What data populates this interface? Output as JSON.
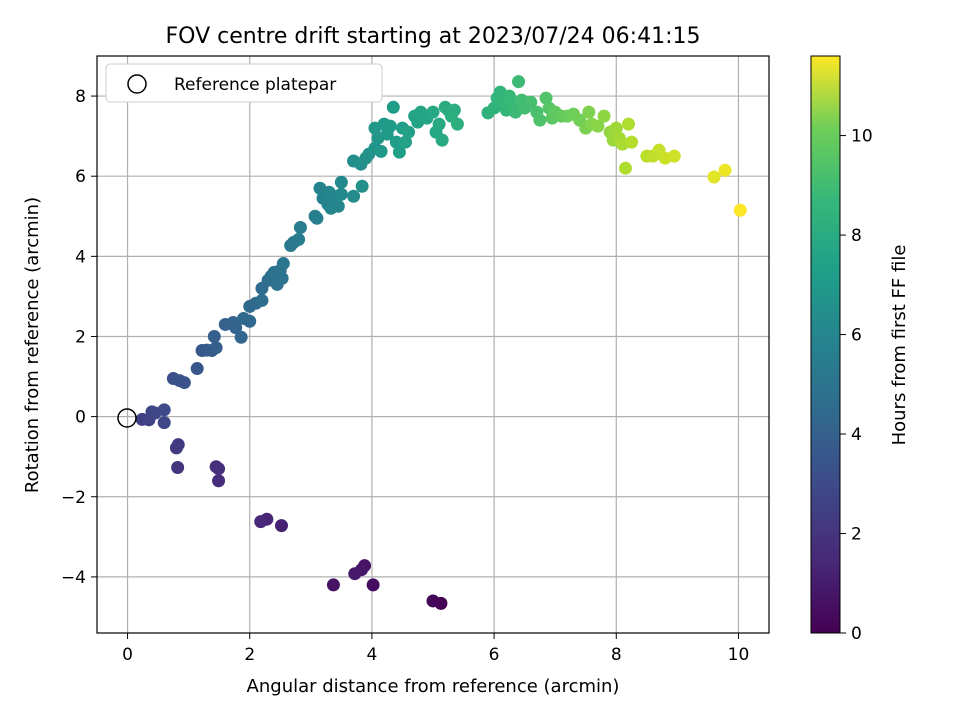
{
  "chart_data": {
    "type": "scatter",
    "title": "FOV centre drift starting at 2023/07/24 06:41:15",
    "xlabel": "Angular distance from reference (arcmin)",
    "ylabel": "Rotation from reference (arcmin)",
    "xlim": [
      -0.5,
      10.5
    ],
    "ylim": [
      -5.4,
      9.0
    ],
    "xticks": [
      0,
      2,
      4,
      6,
      8,
      10
    ],
    "yticks": [
      -4,
      -2,
      0,
      2,
      4,
      6,
      8
    ],
    "grid": true,
    "legend": {
      "position": "top-left",
      "entries": [
        "Reference platepar"
      ]
    },
    "reference_point": {
      "x": 0,
      "y": 0,
      "label": "Reference platepar"
    },
    "colorbar": {
      "label": "Hours from first FF file",
      "colormap": "viridis",
      "range": [
        0,
        11.6
      ],
      "ticks": [
        0,
        2,
        4,
        6,
        8,
        10
      ]
    },
    "series": [
      {
        "points": [
          [
            5.13,
            -4.66,
            0.0
          ],
          [
            5.0,
            -4.6,
            0.15
          ],
          [
            4.02,
            -4.2,
            0.4
          ],
          [
            3.37,
            -4.2,
            0.55
          ],
          [
            3.88,
            -3.72,
            0.6
          ],
          [
            3.83,
            -3.82,
            0.7
          ],
          [
            3.72,
            -3.92,
            0.8
          ],
          [
            2.52,
            -2.72,
            1.1
          ],
          [
            2.28,
            -2.56,
            1.2
          ],
          [
            2.18,
            -2.62,
            1.3
          ],
          [
            1.49,
            -1.6,
            1.5
          ],
          [
            1.49,
            -1.3,
            1.6
          ],
          [
            1.45,
            -1.25,
            1.65
          ],
          [
            0.82,
            -1.27,
            1.8
          ],
          [
            0.83,
            -0.7,
            1.9
          ],
          [
            0.8,
            -0.78,
            2.0
          ],
          [
            0.24,
            -0.07,
            2.2
          ],
          [
            0.35,
            -0.08,
            2.3
          ],
          [
            0.4,
            0.12,
            2.4
          ],
          [
            0.45,
            0.09,
            2.5
          ],
          [
            0.6,
            -0.15,
            2.55
          ],
          [
            0.6,
            0.17,
            2.6
          ],
          [
            0.75,
            0.95,
            2.8
          ],
          [
            0.85,
            0.9,
            2.9
          ],
          [
            0.93,
            0.85,
            3.0
          ],
          [
            1.14,
            1.2,
            3.1
          ],
          [
            1.22,
            1.65,
            3.2
          ],
          [
            1.3,
            1.66,
            3.3
          ],
          [
            1.38,
            1.65,
            3.4
          ],
          [
            1.45,
            1.72,
            3.5
          ],
          [
            1.42,
            2.0,
            3.5
          ],
          [
            1.6,
            2.3,
            3.6
          ],
          [
            1.73,
            2.35,
            3.7
          ],
          [
            1.77,
            2.22,
            3.7
          ],
          [
            1.86,
            1.98,
            3.8
          ],
          [
            1.9,
            2.45,
            3.9
          ],
          [
            2.0,
            2.38,
            3.9
          ],
          [
            2.0,
            2.75,
            4.0
          ],
          [
            2.1,
            2.83,
            4.0
          ],
          [
            2.2,
            2.9,
            4.1
          ],
          [
            2.2,
            3.2,
            4.1
          ],
          [
            2.3,
            3.4,
            4.2
          ],
          [
            2.35,
            3.5,
            4.2
          ],
          [
            2.4,
            3.6,
            4.3
          ],
          [
            2.45,
            3.3,
            4.3
          ],
          [
            2.5,
            3.65,
            4.4
          ],
          [
            2.53,
            3.45,
            4.4
          ],
          [
            2.55,
            3.82,
            4.5
          ],
          [
            2.67,
            4.27,
            4.6
          ],
          [
            2.72,
            4.35,
            4.7
          ],
          [
            2.8,
            4.42,
            4.8
          ],
          [
            2.83,
            4.72,
            4.9
          ],
          [
            3.07,
            5.0,
            5.0
          ],
          [
            3.1,
            4.95,
            5.0
          ],
          [
            3.15,
            5.7,
            5.1
          ],
          [
            3.2,
            5.45,
            5.1
          ],
          [
            3.28,
            5.3,
            5.2
          ],
          [
            3.3,
            5.6,
            5.3
          ],
          [
            3.33,
            5.2,
            5.3
          ],
          [
            3.37,
            5.5,
            5.4
          ],
          [
            3.45,
            5.25,
            5.4
          ],
          [
            3.5,
            5.85,
            5.5
          ],
          [
            3.5,
            5.55,
            5.5
          ],
          [
            3.7,
            5.5,
            5.6
          ],
          [
            3.7,
            6.38,
            5.7
          ],
          [
            3.82,
            6.3,
            5.8
          ],
          [
            3.84,
            5.75,
            5.8
          ],
          [
            3.9,
            6.45,
            5.9
          ],
          [
            3.95,
            6.55,
            5.9
          ],
          [
            4.05,
            6.7,
            6.0
          ],
          [
            4.05,
            7.2,
            6.1
          ],
          [
            4.1,
            6.95,
            6.1
          ],
          [
            4.15,
            6.62,
            6.2
          ],
          [
            4.2,
            7.3,
            6.2
          ],
          [
            4.25,
            7.05,
            6.3
          ],
          [
            4.3,
            7.25,
            6.3
          ],
          [
            4.35,
            7.72,
            6.4
          ],
          [
            4.4,
            6.85,
            6.4
          ],
          [
            4.45,
            6.6,
            6.5
          ],
          [
            4.5,
            7.2,
            6.5
          ],
          [
            4.55,
            6.85,
            6.6
          ],
          [
            4.6,
            7.1,
            6.6
          ],
          [
            4.7,
            7.5,
            6.7
          ],
          [
            4.75,
            7.35,
            6.7
          ],
          [
            4.8,
            7.6,
            6.8
          ],
          [
            4.9,
            7.45,
            6.8
          ],
          [
            5.0,
            7.6,
            6.9
          ],
          [
            5.05,
            7.1,
            6.9
          ],
          [
            5.1,
            7.3,
            7.0
          ],
          [
            5.15,
            6.9,
            7.0
          ],
          [
            5.2,
            7.72,
            7.1
          ],
          [
            5.25,
            7.65,
            7.1
          ],
          [
            5.3,
            7.5,
            7.2
          ],
          [
            5.35,
            7.65,
            7.2
          ],
          [
            5.4,
            7.3,
            7.3
          ],
          [
            5.9,
            7.58,
            7.4
          ],
          [
            6.0,
            7.7,
            7.5
          ],
          [
            6.05,
            7.95,
            7.6
          ],
          [
            6.1,
            8.1,
            7.6
          ],
          [
            6.15,
            7.85,
            7.7
          ],
          [
            6.2,
            7.65,
            7.7
          ],
          [
            6.25,
            8.0,
            7.8
          ],
          [
            6.3,
            7.8,
            7.8
          ],
          [
            6.35,
            7.6,
            7.9
          ],
          [
            6.4,
            8.36,
            7.9
          ],
          [
            6.45,
            7.9,
            8.0
          ],
          [
            6.5,
            7.7,
            8.0
          ],
          [
            6.6,
            7.85,
            8.1
          ],
          [
            6.7,
            7.6,
            8.2
          ],
          [
            6.75,
            7.4,
            8.3
          ],
          [
            6.85,
            7.95,
            8.4
          ],
          [
            6.9,
            7.7,
            8.5
          ],
          [
            6.95,
            7.45,
            8.6
          ],
          [
            7.0,
            7.6,
            8.7
          ],
          [
            7.1,
            7.5,
            8.8
          ],
          [
            7.2,
            7.5,
            8.9
          ],
          [
            7.3,
            7.55,
            9.0
          ],
          [
            7.4,
            7.4,
            9.1
          ],
          [
            7.5,
            7.2,
            9.2
          ],
          [
            7.55,
            7.6,
            9.3
          ],
          [
            7.6,
            7.3,
            9.4
          ],
          [
            7.7,
            7.25,
            9.5
          ],
          [
            7.8,
            7.5,
            9.6
          ],
          [
            7.9,
            7.1,
            9.7
          ],
          [
            7.95,
            6.9,
            9.8
          ],
          [
            8.0,
            7.2,
            9.9
          ],
          [
            8.05,
            6.95,
            10.0
          ],
          [
            8.1,
            6.8,
            10.1
          ],
          [
            8.15,
            6.2,
            10.2
          ],
          [
            8.2,
            7.3,
            10.2
          ],
          [
            8.25,
            6.85,
            10.3
          ],
          [
            8.5,
            6.5,
            10.4
          ],
          [
            8.6,
            6.5,
            10.5
          ],
          [
            8.7,
            6.65,
            10.6
          ],
          [
            8.8,
            6.45,
            10.7
          ],
          [
            8.95,
            6.5,
            10.8
          ],
          [
            9.6,
            5.98,
            11.1
          ],
          [
            9.78,
            6.15,
            11.3
          ],
          [
            10.03,
            5.15,
            11.6
          ]
        ]
      }
    ]
  }
}
